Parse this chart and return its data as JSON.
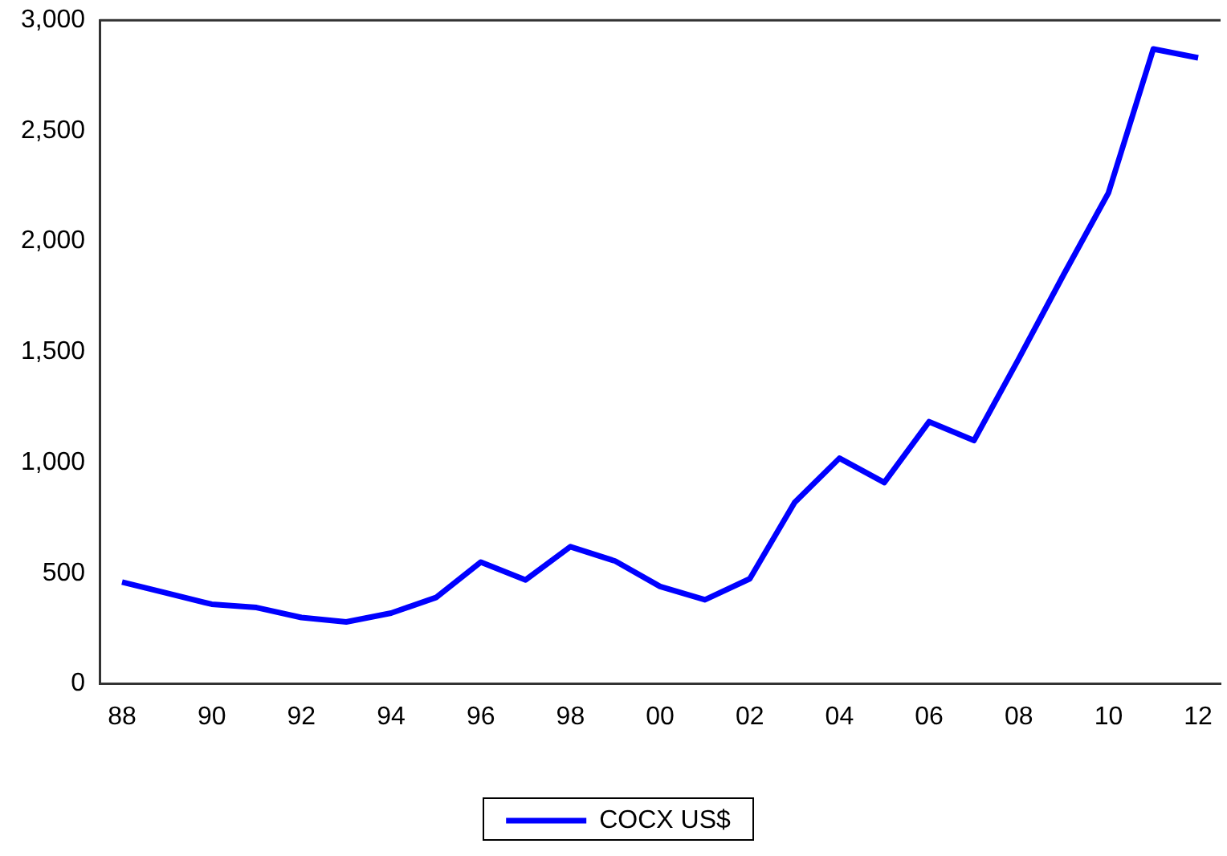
{
  "chart_data": {
    "type": "line",
    "categories": [
      "88",
      null,
      "90",
      null,
      "92",
      null,
      "94",
      null,
      "96",
      null,
      "98",
      null,
      "00",
      null,
      "02",
      null,
      "04",
      null,
      "06",
      null,
      "08",
      null,
      "10",
      null,
      "12"
    ],
    "series": [
      {
        "name": "COCX US$",
        "color": "#0000ff",
        "values": [
          460,
          410,
          360,
          345,
          300,
          280,
          320,
          390,
          550,
          470,
          620,
          555,
          440,
          380,
          475,
          820,
          1020,
          910,
          1185,
          1100,
          1470,
          1850,
          2220,
          2870,
          2830
        ]
      }
    ],
    "ylim": [
      0,
      3000
    ],
    "yticks": [
      {
        "value": 0,
        "label": "0"
      },
      {
        "value": 500,
        "label": "500"
      },
      {
        "value": 1000,
        "label": "1,000"
      },
      {
        "value": 1500,
        "label": "1,500"
      },
      {
        "value": 2000,
        "label": "2,000"
      },
      {
        "value": 2500,
        "label": "2,500"
      },
      {
        "value": 3000,
        "label": "3,000"
      }
    ],
    "grid": false,
    "legend": "bottom",
    "marker": "none",
    "line_style": "solid"
  }
}
